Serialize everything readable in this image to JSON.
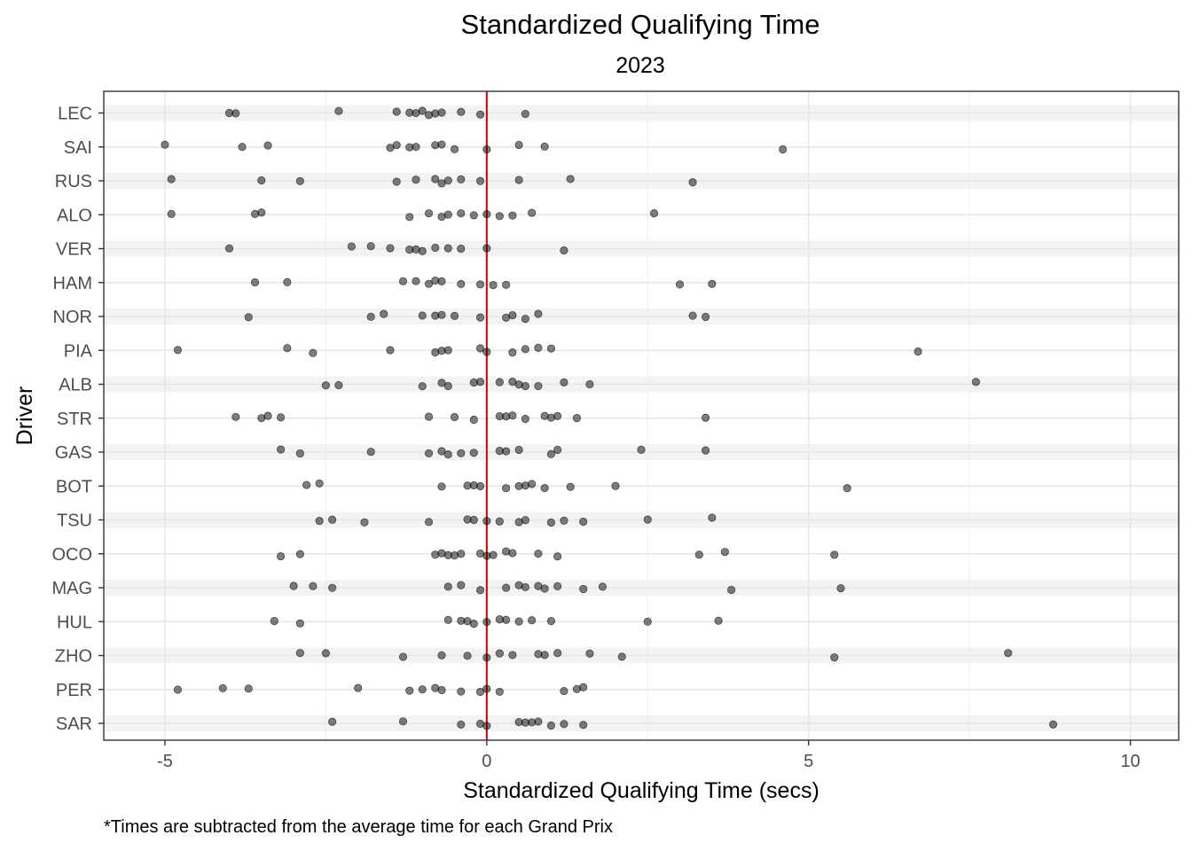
{
  "chart_data": {
    "type": "scatter",
    "title": "Standardized Qualifying Time",
    "subtitle": "2023",
    "xlabel": "Standardized Qualifying Time (secs)",
    "ylabel": "Driver",
    "caption": "*Times are subtracted from the average time for each Grand Prix",
    "xlim": [
      -5.95,
      10.75
    ],
    "x_ticks": [
      -5,
      0,
      5,
      10
    ],
    "x_tick_labels": [
      "-5",
      "0",
      "5",
      "10"
    ],
    "reference_line": {
      "x": 0,
      "color": "#cc0000"
    },
    "point_color": "#000000",
    "point_opacity": 0.5,
    "grid": true,
    "alternating_bands": true,
    "categories": [
      "LEC",
      "SAI",
      "RUS",
      "ALO",
      "VER",
      "HAM",
      "NOR",
      "PIA",
      "ALB",
      "STR",
      "GAS",
      "BOT",
      "TSU",
      "OCO",
      "MAG",
      "HUL",
      "ZHO",
      "PER",
      "SAR"
    ],
    "series": [
      {
        "driver": "LEC",
        "values": [
          -4.0,
          -3.9,
          -2.3,
          -1.4,
          -1.2,
          -1.1,
          -1.0,
          -0.9,
          -0.8,
          -0.7,
          -0.4,
          -0.1,
          0.6
        ]
      },
      {
        "driver": "SAI",
        "values": [
          -5.0,
          -3.8,
          -3.4,
          -1.5,
          -1.4,
          -1.2,
          -1.1,
          -0.8,
          -0.7,
          -0.5,
          0.0,
          0.5,
          0.9,
          4.6
        ]
      },
      {
        "driver": "RUS",
        "values": [
          -4.9,
          -3.5,
          -2.9,
          -1.4,
          -1.1,
          -0.8,
          -0.7,
          -0.6,
          -0.4,
          -0.1,
          0.5,
          1.3,
          3.2
        ]
      },
      {
        "driver": "ALO",
        "values": [
          -4.9,
          -3.6,
          -3.5,
          -1.2,
          -0.9,
          -0.7,
          -0.6,
          -0.4,
          -0.2,
          0.0,
          0.2,
          0.4,
          0.7,
          2.6
        ]
      },
      {
        "driver": "VER",
        "values": [
          -4.0,
          -2.1,
          -1.8,
          -1.5,
          -1.2,
          -1.1,
          -1.0,
          -0.8,
          -0.6,
          -0.4,
          0.0,
          1.2
        ]
      },
      {
        "driver": "HAM",
        "values": [
          -3.6,
          -3.1,
          -1.3,
          -1.1,
          -0.9,
          -0.8,
          -0.7,
          -0.4,
          -0.1,
          0.1,
          0.3,
          3.0,
          3.5
        ]
      },
      {
        "driver": "NOR",
        "values": [
          -3.7,
          -1.8,
          -1.6,
          -1.0,
          -0.8,
          -0.7,
          -0.5,
          -0.1,
          0.3,
          0.4,
          0.6,
          0.8,
          3.2,
          3.4
        ]
      },
      {
        "driver": "PIA",
        "values": [
          -4.8,
          -3.1,
          -2.7,
          -1.5,
          -0.8,
          -0.7,
          -0.6,
          -0.1,
          0.0,
          0.4,
          0.6,
          0.8,
          1.0,
          6.7
        ]
      },
      {
        "driver": "ALB",
        "values": [
          -2.5,
          -2.3,
          -1.0,
          -0.7,
          -0.6,
          -0.2,
          -0.1,
          0.2,
          0.4,
          0.5,
          0.6,
          0.8,
          1.2,
          1.6,
          7.6
        ]
      },
      {
        "driver": "STR",
        "values": [
          -3.9,
          -3.5,
          -3.4,
          -3.2,
          -0.9,
          -0.5,
          -0.2,
          0.2,
          0.3,
          0.4,
          0.6,
          0.9,
          1.0,
          1.1,
          1.4,
          3.4
        ]
      },
      {
        "driver": "GAS",
        "values": [
          -3.2,
          -2.9,
          -1.8,
          -0.9,
          -0.7,
          -0.6,
          -0.4,
          -0.2,
          0.2,
          0.3,
          0.5,
          1.0,
          1.1,
          2.4,
          3.4
        ]
      },
      {
        "driver": "BOT",
        "values": [
          -2.8,
          -2.6,
          -0.7,
          -0.3,
          -0.2,
          -0.1,
          0.3,
          0.5,
          0.6,
          0.7,
          0.9,
          1.3,
          2.0,
          5.6
        ]
      },
      {
        "driver": "TSU",
        "values": [
          -2.6,
          -2.4,
          -1.9,
          -0.9,
          -0.3,
          -0.2,
          0.0,
          0.2,
          0.5,
          0.6,
          1.0,
          1.2,
          1.5,
          2.5,
          3.5
        ]
      },
      {
        "driver": "OCO",
        "values": [
          -3.2,
          -2.9,
          -0.8,
          -0.7,
          -0.6,
          -0.5,
          -0.4,
          -0.1,
          0.0,
          0.1,
          0.3,
          0.4,
          0.8,
          1.1,
          3.3,
          3.7,
          5.4
        ]
      },
      {
        "driver": "MAG",
        "values": [
          -3.0,
          -2.7,
          -2.4,
          -0.6,
          -0.4,
          -0.1,
          0.3,
          0.5,
          0.6,
          0.8,
          0.9,
          1.1,
          1.5,
          1.8,
          3.8,
          5.5
        ]
      },
      {
        "driver": "HUL",
        "values": [
          -3.3,
          -2.9,
          -0.6,
          -0.4,
          -0.3,
          -0.2,
          0.0,
          0.2,
          0.3,
          0.5,
          0.7,
          1.0,
          2.5,
          3.6
        ]
      },
      {
        "driver": "ZHO",
        "values": [
          -2.9,
          -2.5,
          -1.3,
          -0.7,
          -0.3,
          0.0,
          0.2,
          0.4,
          0.8,
          0.9,
          1.1,
          1.6,
          2.1,
          5.4,
          8.1
        ]
      },
      {
        "driver": "PER",
        "values": [
          -4.8,
          -4.1,
          -3.7,
          -2.0,
          -1.2,
          -1.0,
          -0.8,
          -0.7,
          -0.4,
          -0.1,
          0.0,
          0.2,
          1.2,
          1.4,
          1.5
        ]
      },
      {
        "driver": "SAR",
        "values": [
          -2.4,
          -1.3,
          -0.4,
          -0.1,
          0.0,
          0.5,
          0.6,
          0.7,
          0.8,
          1.0,
          1.2,
          1.5,
          8.8
        ]
      }
    ]
  }
}
